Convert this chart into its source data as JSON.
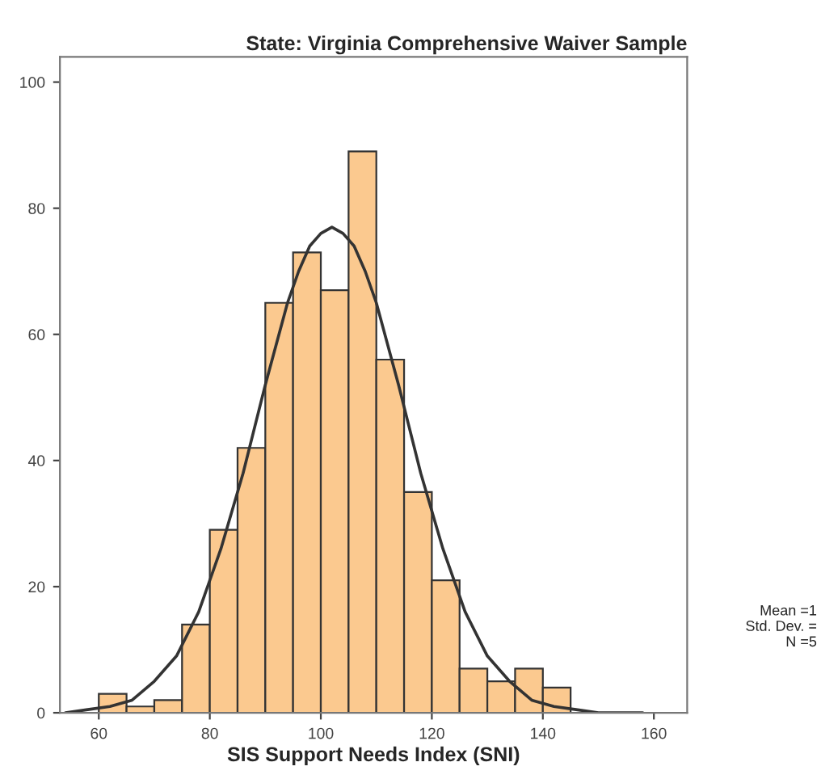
{
  "chart_data": {
    "type": "histogram",
    "title": "State: Virginia Comprehensive Waiver Sample",
    "xlabel": "SIS Support Needs Index (SNI)",
    "bins": [
      60,
      65,
      70,
      75,
      80,
      85,
      90,
      95,
      100,
      105,
      110,
      115,
      120,
      125,
      130,
      135,
      140,
      145
    ],
    "values": [
      3,
      1,
      2,
      14,
      29,
      42,
      65,
      73,
      67,
      89,
      56,
      35,
      21,
      7,
      5,
      7,
      4
    ],
    "color": "#fbc98f",
    "series": [
      {
        "type": "line",
        "color": "#333333",
        "x": [
          54,
          58,
          62,
          66,
          70,
          74,
          78,
          82,
          86,
          90,
          94,
          96,
          98,
          100,
          102,
          104,
          106,
          108,
          110,
          114,
          118,
          122,
          126,
          130,
          134,
          138,
          142,
          146,
          150,
          154,
          158
        ],
        "values": [
          0,
          0.5,
          1,
          2,
          5,
          9,
          16,
          26,
          38,
          52,
          65,
          70,
          74,
          76,
          77,
          76,
          74,
          70,
          65,
          52,
          38,
          26,
          16,
          9,
          5,
          2,
          1,
          0.5,
          0,
          0,
          0
        ]
      }
    ],
    "xlim": [
      53,
      166
    ],
    "ylim": [
      0,
      104
    ],
    "xticks": [
      60,
      80,
      100,
      120,
      140,
      160
    ],
    "yticks": [
      0,
      20,
      40,
      60,
      80,
      100
    ],
    "grid": false,
    "legend": false,
    "annotations": [
      "Mean =1",
      "Std. Dev. =",
      "N =5"
    ]
  }
}
